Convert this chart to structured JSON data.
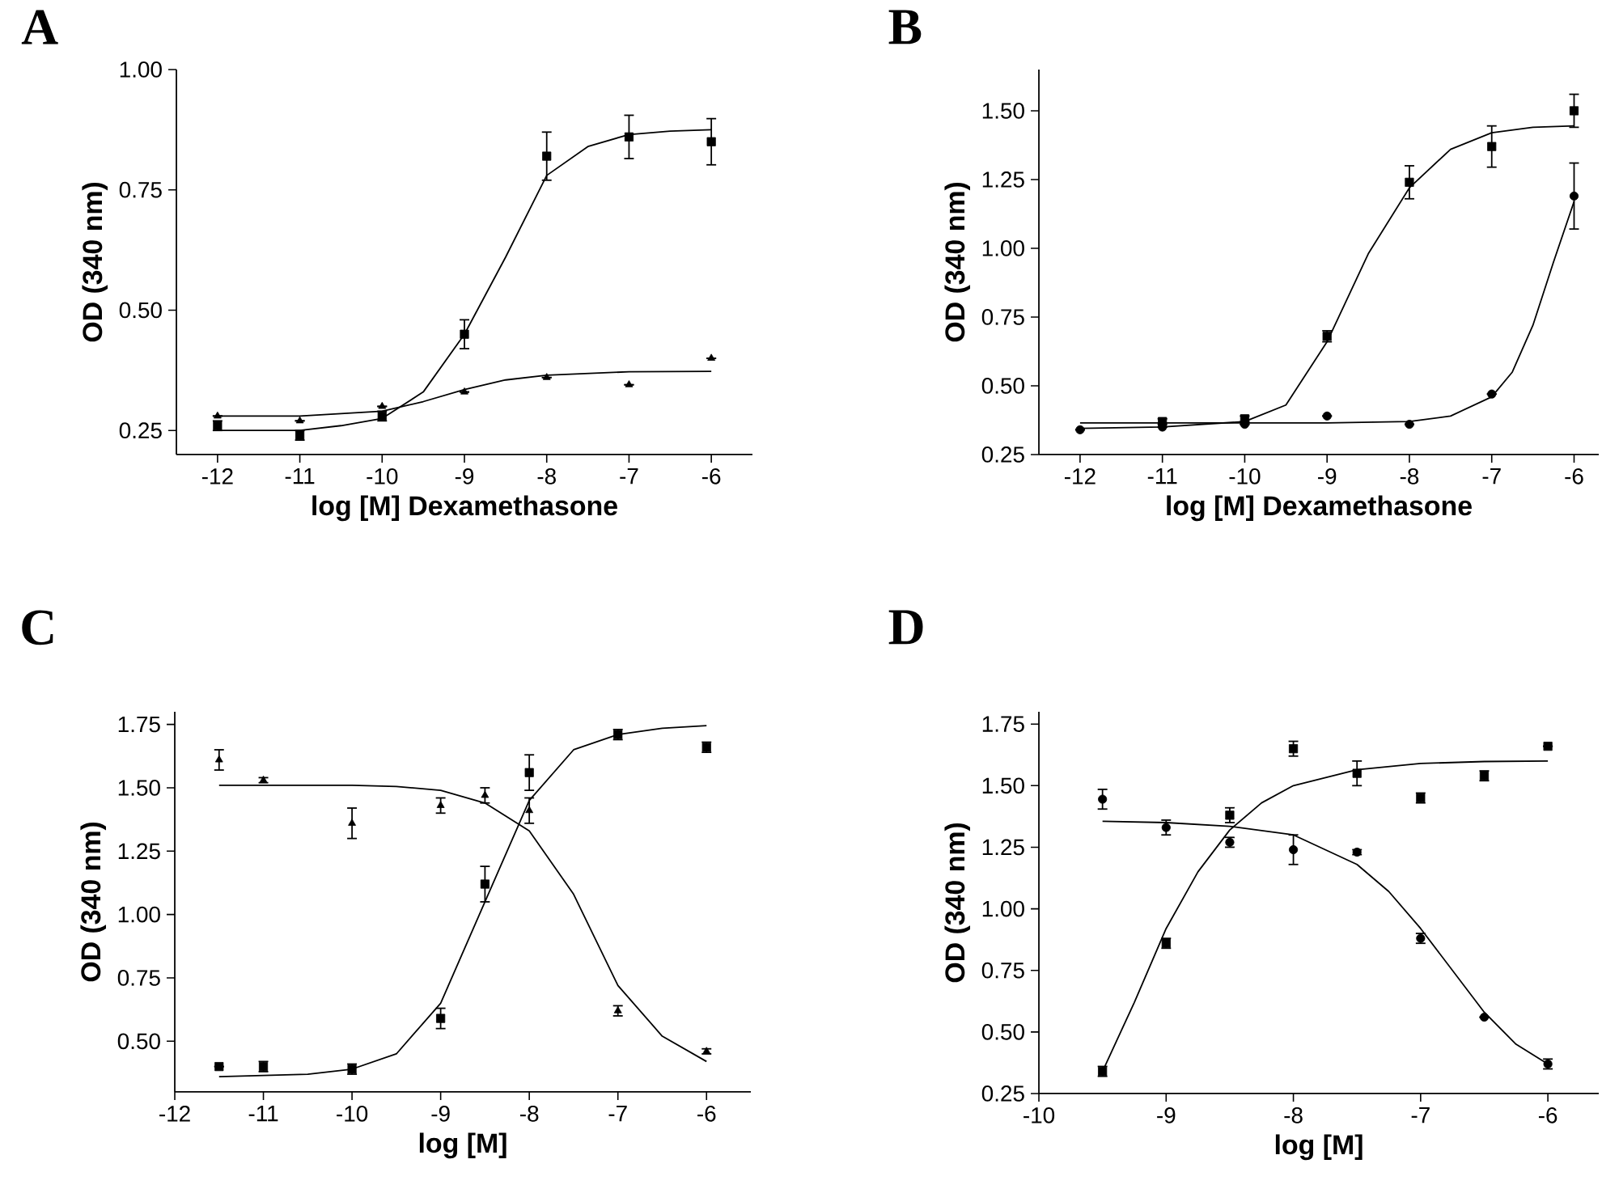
{
  "chart_data": [
    {
      "type": "scatter",
      "title": "A",
      "xlabel": "log [M] Dexamethasone",
      "ylabel": "OD (340 nm)",
      "xlim": [
        -12.5,
        -5.5
      ],
      "ylim": [
        0.2,
        1.0
      ],
      "xticks": [
        -12,
        -11,
        -10,
        -9,
        -8,
        -7,
        -6
      ],
      "yticks": [
        {
          "value": 0.25,
          "label": "0.25"
        },
        {
          "value": 0.5,
          "label": "0.50"
        },
        {
          "value": 0.75,
          "label": "0.75"
        },
        {
          "value": 1.0,
          "label": "1.00"
        }
      ],
      "series": [
        {
          "type": "scatter",
          "marker": "square",
          "color": "#000000",
          "x": [
            -12,
            -11,
            -10,
            -9,
            -8,
            -7,
            -6
          ],
          "values": [
            0.26,
            0.24,
            0.28,
            0.45,
            0.82,
            0.86,
            0.85
          ],
          "errors": [
            0.01,
            0.01,
            0.01,
            0.03,
            0.05,
            0.045,
            0.048
          ]
        },
        {
          "type": "scatter",
          "marker": "triangle",
          "color": "#000000",
          "x": [
            -12,
            -11,
            -10,
            -9,
            -8,
            -7,
            -6
          ],
          "values": [
            0.28,
            0.27,
            0.3,
            0.33,
            0.36,
            0.345,
            0.4
          ],
          "errors": [
            null,
            null,
            null,
            null,
            null,
            null,
            null
          ]
        },
        {
          "type": "line",
          "marker": "none",
          "color": "#000000",
          "x": [
            -12,
            -11.5,
            -11,
            -10.5,
            -10,
            -9.5,
            -9,
            -8.5,
            -8,
            -7.5,
            -7,
            -6.5,
            -6
          ],
          "values": [
            0.25,
            0.25,
            0.25,
            0.26,
            0.275,
            0.33,
            0.45,
            0.61,
            0.78,
            0.84,
            0.865,
            0.872,
            0.875
          ]
        },
        {
          "type": "line",
          "marker": "none",
          "color": "#000000",
          "x": [
            -12,
            -11,
            -10.5,
            -10,
            -9.5,
            -9,
            -8.5,
            -8,
            -7,
            -6
          ],
          "values": [
            0.28,
            0.28,
            0.285,
            0.29,
            0.31,
            0.335,
            0.355,
            0.365,
            0.372,
            0.373
          ]
        }
      ]
    },
    {
      "type": "scatter",
      "title": "B",
      "xlabel": "log [M] Dexamethasone",
      "ylabel": "OD (340 nm)",
      "xlim": [
        -12.5,
        -5.7
      ],
      "ylim": [
        0.25,
        1.65
      ],
      "xticks": [
        -12,
        -11,
        -10,
        -9,
        -8,
        -7,
        -6
      ],
      "yticks": [
        {
          "value": 0.25,
          "label": "0.25"
        },
        {
          "value": 0.5,
          "label": "0.50"
        },
        {
          "value": 0.75,
          "label": "0.75"
        },
        {
          "value": 1.0,
          "label": "1.00"
        },
        {
          "value": 1.25,
          "label": "1.25"
        },
        {
          "value": 1.5,
          "label": "1.50"
        }
      ],
      "series": [
        {
          "type": "scatter",
          "marker": "square",
          "color": "#000000",
          "x": [
            -11,
            -10,
            -9,
            -8,
            -7,
            -6
          ],
          "values": [
            0.37,
            0.38,
            0.68,
            1.24,
            1.37,
            1.5
          ],
          "errors": [
            0.01,
            0.01,
            0.02,
            0.06,
            0.075,
            0.06
          ]
        },
        {
          "type": "scatter",
          "marker": "circle",
          "color": "#000000",
          "x": [
            -12,
            -11,
            -10,
            -9,
            -8,
            -7,
            -6
          ],
          "values": [
            0.34,
            0.35,
            0.36,
            0.39,
            0.36,
            0.47,
            1.19
          ],
          "errors": [
            null,
            null,
            null,
            null,
            null,
            null,
            0.12
          ]
        },
        {
          "type": "line",
          "marker": "none",
          "color": "#000000",
          "x": [
            -12,
            -11,
            -10,
            -9.5,
            -9,
            -8.5,
            -8,
            -7.5,
            -7,
            -6.5,
            -6
          ],
          "values": [
            0.345,
            0.35,
            0.37,
            0.43,
            0.66,
            0.98,
            1.22,
            1.36,
            1.42,
            1.44,
            1.445
          ]
        },
        {
          "type": "line",
          "marker": "none",
          "color": "#000000",
          "x": [
            -12,
            -10,
            -9,
            -8,
            -7.5,
            -7,
            -6.75,
            -6.5,
            -6.25,
            -6
          ],
          "values": [
            0.365,
            0.365,
            0.365,
            0.37,
            0.39,
            0.46,
            0.55,
            0.72,
            0.95,
            1.17
          ]
        }
      ]
    },
    {
      "type": "scatter",
      "title": "C",
      "xlabel": "log [M]",
      "ylabel": "OD (340 nm)",
      "xlim": [
        -12,
        -5.5
      ],
      "ylim": [
        0.3,
        1.8
      ],
      "xticks": [
        -12,
        -11,
        -10,
        -9,
        -8,
        -7,
        -6
      ],
      "yticks": [
        {
          "value": 0.5,
          "label": "0.50"
        },
        {
          "value": 0.75,
          "label": "0.75"
        },
        {
          "value": 1.0,
          "label": "1.00"
        },
        {
          "value": 1.25,
          "label": "1.25"
        },
        {
          "value": 1.5,
          "label": "1.50"
        },
        {
          "value": 1.75,
          "label": "1.75"
        }
      ],
      "series": [
        {
          "type": "scatter",
          "marker": "square",
          "color": "#000000",
          "x": [
            -11.5,
            -11,
            -10,
            -9,
            -8.5,
            -8,
            -7,
            -6
          ],
          "values": [
            0.4,
            0.4,
            0.39,
            0.59,
            1.12,
            1.56,
            1.71,
            1.66
          ],
          "errors": [
            null,
            0.02,
            0.02,
            0.04,
            0.07,
            0.07,
            0.02,
            0.02
          ]
        },
        {
          "type": "scatter",
          "marker": "triangle",
          "color": "#000000",
          "x": [
            -11.5,
            -11,
            -10,
            -9,
            -8.5,
            -8,
            -7,
            -6
          ],
          "values": [
            1.61,
            1.53,
            1.36,
            1.43,
            1.47,
            1.41,
            0.62,
            0.46
          ],
          "errors": [
            0.04,
            0.01,
            0.06,
            0.03,
            0.03,
            0.05,
            0.02,
            0.01
          ]
        },
        {
          "type": "line",
          "marker": "none",
          "color": "#000000",
          "x": [
            -11.5,
            -11,
            -10.5,
            -10,
            -9.5,
            -9,
            -8.5,
            -8,
            -7.5,
            -7,
            -6.5,
            -6
          ],
          "values": [
            0.36,
            0.365,
            0.37,
            0.39,
            0.45,
            0.65,
            1.05,
            1.45,
            1.65,
            1.71,
            1.735,
            1.745
          ]
        },
        {
          "type": "line",
          "marker": "none",
          "color": "#000000",
          "x": [
            -11.5,
            -11,
            -10,
            -9.5,
            -9,
            -8.5,
            -8,
            -7.5,
            -7,
            -6.5,
            -6
          ],
          "values": [
            1.51,
            1.51,
            1.51,
            1.505,
            1.49,
            1.44,
            1.33,
            1.08,
            0.72,
            0.52,
            0.42
          ]
        }
      ]
    },
    {
      "type": "scatter",
      "title": "D",
      "xlabel": "log [M]",
      "ylabel": "OD (340 nm)",
      "xlim": [
        -10,
        -5.6
      ],
      "ylim": [
        0.25,
        1.8
      ],
      "xticks": [
        -10,
        -9,
        -8,
        -7,
        -6
      ],
      "yticks": [
        {
          "value": 0.25,
          "label": "0.25"
        },
        {
          "value": 0.5,
          "label": "0.50"
        },
        {
          "value": 0.75,
          "label": "0.75"
        },
        {
          "value": 1.0,
          "label": "1.00"
        },
        {
          "value": 1.25,
          "label": "1.25"
        },
        {
          "value": 1.5,
          "label": "1.50"
        },
        {
          "value": 1.75,
          "label": "1.75"
        }
      ],
      "series": [
        {
          "type": "scatter",
          "marker": "square",
          "color": "#000000",
          "x": [
            -9.5,
            -9,
            -8.5,
            -8,
            -7.5,
            -7,
            -6.5,
            -6
          ],
          "values": [
            0.34,
            0.86,
            1.38,
            1.65,
            1.55,
            1.45,
            1.54,
            1.66
          ],
          "errors": [
            0.02,
            0.02,
            0.03,
            0.03,
            0.05,
            0.02,
            0.02,
            null
          ]
        },
        {
          "type": "scatter",
          "marker": "circle",
          "color": "#000000",
          "x": [
            -9.5,
            -9,
            -8.5,
            -8,
            -7.5,
            -7,
            -6.5,
            -6
          ],
          "values": [
            1.445,
            1.33,
            1.27,
            1.24,
            1.23,
            0.88,
            0.56,
            0.37
          ],
          "errors": [
            0.04,
            0.03,
            0.02,
            0.06,
            0.01,
            0.02,
            null,
            0.02
          ]
        },
        {
          "type": "line",
          "marker": "none",
          "color": "#000000",
          "x": [
            -9.5,
            -9.25,
            -9,
            -8.75,
            -8.5,
            -8.25,
            -8,
            -7.5,
            -7,
            -6.5,
            -6
          ],
          "values": [
            0.34,
            0.62,
            0.92,
            1.15,
            1.32,
            1.43,
            1.5,
            1.565,
            1.59,
            1.598,
            1.6
          ]
        },
        {
          "type": "line",
          "marker": "none",
          "color": "#000000",
          "x": [
            -9.5,
            -9,
            -8.5,
            -8,
            -7.5,
            -7.25,
            -7,
            -6.75,
            -6.5,
            -6.25,
            -6
          ],
          "values": [
            1.355,
            1.35,
            1.335,
            1.3,
            1.18,
            1.07,
            0.92,
            0.75,
            0.58,
            0.45,
            0.37
          ]
        }
      ]
    }
  ]
}
